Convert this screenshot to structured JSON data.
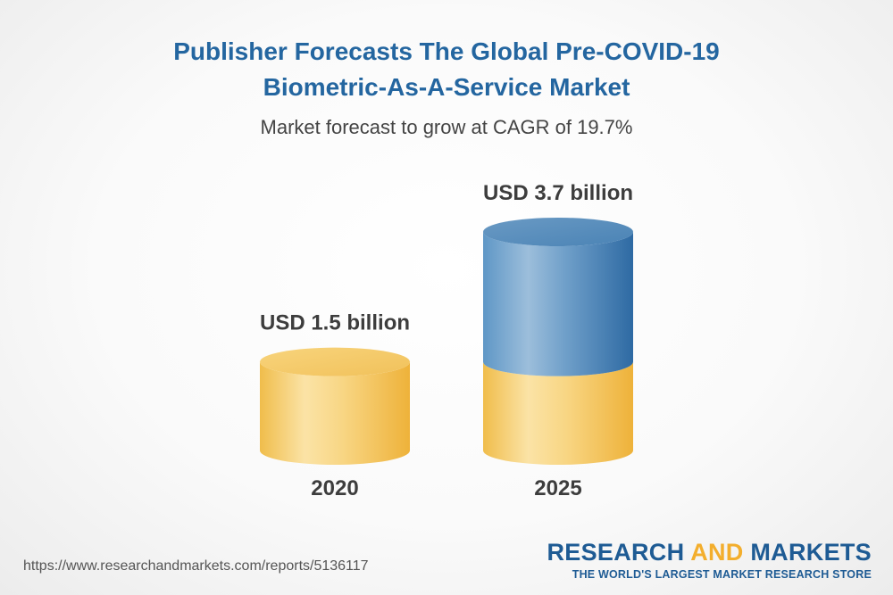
{
  "header": {
    "title_line1": "Publisher Forecasts The Global Pre-COVID-19",
    "title_line2": "Biometric-As-A-Service Market",
    "subtitle": "Market forecast to grow at CAGR of 19.7%"
  },
  "chart_data": {
    "type": "bar",
    "title": "Publisher Forecasts The Global Pre-COVID-19 Biometric-As-A-Service Market",
    "subtitle": "Market forecast to grow at CAGR of 19.7%",
    "categories": [
      "2020",
      "2025"
    ],
    "values": [
      1.5,
      3.7
    ],
    "value_labels": [
      "USD 1.5 billion",
      "USD 3.7 billion"
    ],
    "unit": "USD billion",
    "colors": {
      "base": "#f3c45a",
      "growth": "#3f7fb3"
    }
  },
  "footer": {
    "url": "https://www.researchandmarkets.com/reports/5136117",
    "brand_part1": "RESEARCH ",
    "brand_part2": "AND",
    "brand_part3": " MARKETS",
    "brand_tagline": "THE WORLD'S LARGEST MARKET RESEARCH STORE"
  }
}
